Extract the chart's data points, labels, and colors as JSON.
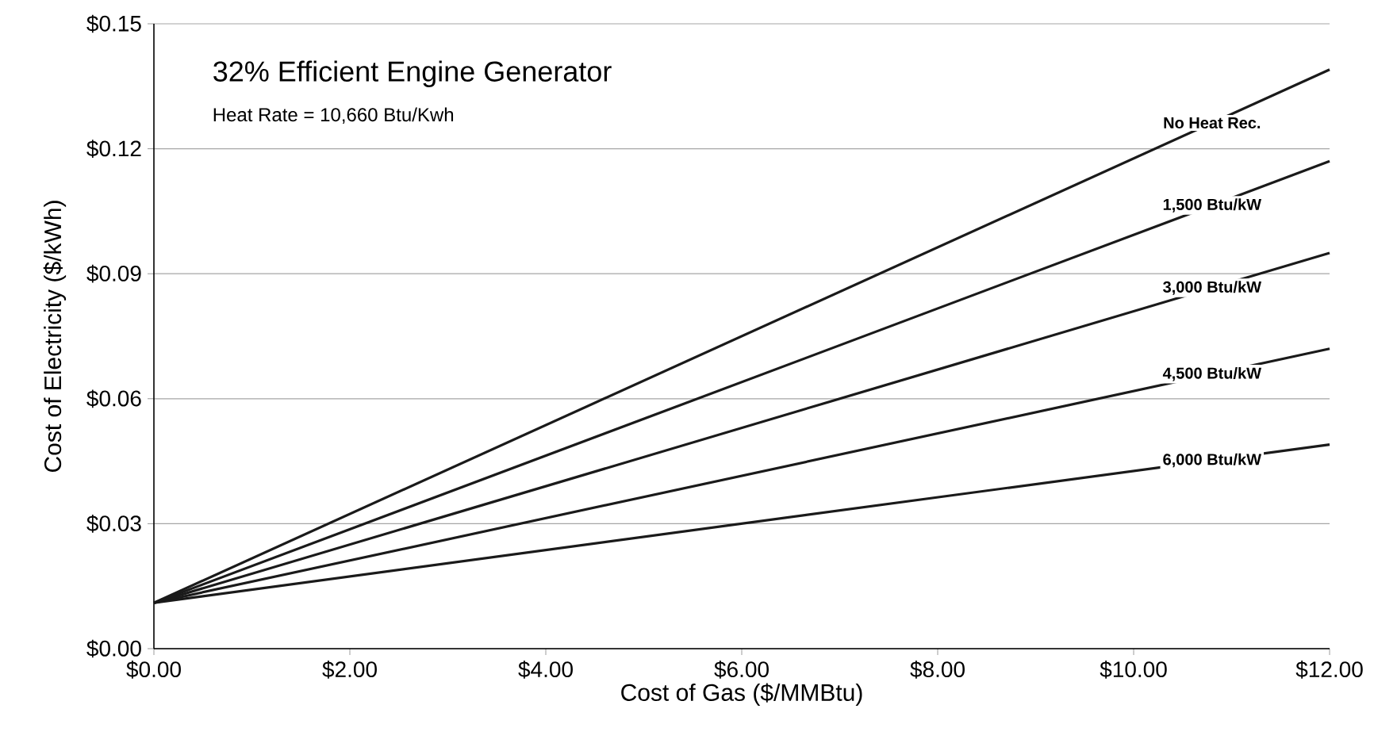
{
  "chart_data": {
    "type": "line",
    "title": "32% Efficient Engine Generator",
    "subtitle": "Heat Rate = 10,660 Btu/Kwh",
    "xlabel": "Cost of Gas ($/MMBtu)",
    "ylabel": "Cost of Electricity ($/kWh)",
    "x": [
      0,
      12
    ],
    "series": [
      {
        "name": "No Heat Rec.",
        "color": "#1a1a1a",
        "values": [
          0.011,
          0.139
        ]
      },
      {
        "name": "1,500 Btu/kW",
        "color": "#1a1a1a",
        "values": [
          0.011,
          0.117
        ]
      },
      {
        "name": "3,000 Btu/kW",
        "color": "#1a1a1a",
        "values": [
          0.011,
          0.095
        ]
      },
      {
        "name": "4,500 Btu/kW",
        "color": "#1a1a1a",
        "values": [
          0.011,
          0.072
        ]
      },
      {
        "name": "6,000 Btu/kW",
        "color": "#1a1a1a",
        "values": [
          0.011,
          0.049
        ]
      }
    ],
    "xlim": [
      0,
      12
    ],
    "ylim": [
      0,
      0.15
    ],
    "xticks": [
      {
        "value": 0,
        "label": "$0.00"
      },
      {
        "value": 2,
        "label": "$2.00"
      },
      {
        "value": 4,
        "label": "$4.00"
      },
      {
        "value": 6,
        "label": "$6.00"
      },
      {
        "value": 8,
        "label": "$8.00"
      },
      {
        "value": 10,
        "label": "$10.00"
      },
      {
        "value": 12,
        "label": "$12.00"
      }
    ],
    "yticks": [
      {
        "value": 0,
        "label": "$0.00"
      },
      {
        "value": 0.03,
        "label": "$0.03"
      },
      {
        "value": 0.06,
        "label": "$0.06"
      },
      {
        "value": 0.09,
        "label": "$0.09"
      },
      {
        "value": 0.12,
        "label": "$0.12"
      },
      {
        "value": 0.15,
        "label": "$0.15"
      }
    ],
    "grid": "y",
    "marker": "none",
    "line_style": "solid"
  }
}
